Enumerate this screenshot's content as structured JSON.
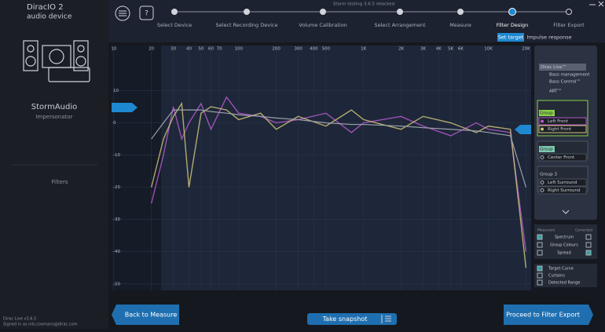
{
  "app": {
    "title": "Storm testing 3.6.5 relocked",
    "steps": [
      "Select Device",
      "Select Recording Device",
      "Volume Calibration",
      "Select Arrangement",
      "Measure",
      "Filter Design",
      "Filter Export"
    ],
    "tabs": [
      "Set target",
      "Impulse response"
    ],
    "device": {
      "name": "DiracIO 2",
      "subtitle": "audio device",
      "brand": "StormAudio",
      "model": "Impersonator",
      "section": "Filters"
    },
    "footer": [
      "Dirac Live v3.6.5",
      "Signed in as nils.coomans@dirac.com"
    ],
    "panel": {
      "modes": [
        "Dirac Live™",
        "Bass management",
        "Bass Control™",
        "ART™"
      ],
      "groups": [
        {
          "name": "Group 1"
        },
        {
          "name": "Group 2",
          "channels": [
            "Center Front"
          ]
        },
        {
          "name": "Group 3",
          "channels": [
            "Left Surround",
            "Right Surround"
          ]
        }
      ],
      "columns": [
        "Measured",
        "Corrected"
      ],
      "options": [
        "Spectrum",
        "Group Colours",
        "Spread"
      ],
      "display": [
        "Curtains",
        "Detected Range"
      ]
    },
    "buttons": [
      "Back to Measure",
      "Take snapshot",
      "Proceed to Filter Export"
    ]
  },
  "chart_data": {
    "type": "line",
    "xscale": "log",
    "x": [
      20,
      25,
      30,
      35,
      40,
      50,
      60,
      80,
      100,
      150,
      200,
      300,
      500,
      800,
      1000,
      2000,
      3000,
      5000,
      8000,
      10000,
      15000,
      20000
    ],
    "series": [
      {
        "name": "Left Front",
        "color": "#b458cc",
        "values": [
          -25,
          -10,
          5,
          -5,
          0,
          6,
          -2,
          8,
          3,
          2,
          0,
          1,
          3,
          -3,
          0,
          2,
          -1,
          -4,
          0,
          -2,
          -3,
          -40
        ]
      },
      {
        "name": "Right Front",
        "color": "#cbc27a",
        "values": [
          -20,
          -5,
          2,
          6,
          -20,
          3,
          5,
          4,
          1,
          3,
          -2,
          2,
          -1,
          4,
          1,
          -2,
          2,
          0,
          -3,
          -1,
          -2,
          -45
        ]
      },
      {
        "name": "Target Curve",
        "color": "#9aa1ab",
        "values": [
          -5,
          0,
          4,
          4,
          4,
          4,
          3.5,
          3,
          2.5,
          2,
          1.5,
          1,
          0,
          -0.5,
          -0.5,
          -1,
          -1.5,
          -2,
          -2.5,
          -3,
          -4,
          -20
        ]
      }
    ],
    "xlim": [
      9.6,
      22000
    ],
    "ylim": [
      -52,
      24
    ],
    "xticks": [
      10,
      20,
      30,
      40,
      50,
      60,
      70,
      100,
      200,
      300,
      400,
      500,
      {
        "value": 1000,
        "label": "1K"
      },
      {
        "value": 2000,
        "label": "2K"
      },
      {
        "value": 3000,
        "label": "3K"
      },
      {
        "value": 4000,
        "label": "4K"
      },
      {
        "value": 5000,
        "label": "5K"
      },
      {
        "value": 6000,
        "label": "6K"
      },
      {
        "value": 10000,
        "label": "10K"
      },
      {
        "value": 20000,
        "label": "20K"
      }
    ],
    "yticks": [
      10,
      0,
      -10,
      -20,
      -30,
      -40,
      -50
    ],
    "grid": true
  }
}
